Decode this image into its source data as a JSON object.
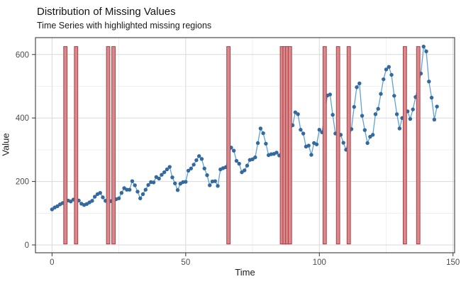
{
  "chart_data": {
    "type": "line",
    "title": "Distribution of Missing Values",
    "subtitle": "Time Series with highlighted missing regions",
    "xlabel": "Time",
    "ylabel": "Value",
    "xlim": [
      -6.2,
      150.6
    ],
    "ylim": [
      -24.6,
      653.2
    ],
    "x_major_ticks": [
      0,
      50,
      100,
      150
    ],
    "y_major_ticks": [
      0,
      200,
      400,
      600
    ],
    "x_minor_gridlines": [
      25,
      75,
      125
    ],
    "y_minor_gridlines": [
      100,
      300,
      500
    ],
    "grid": "on",
    "legend": "none",
    "colors": {
      "point": "#34699e",
      "line": "#5ea1d9",
      "missing_bar_fill": "#da888b",
      "missing_bar_stroke": "#ab3f45",
      "grid_major": "#d9d9d9",
      "grid_minor": "#ececec",
      "panel_border": "#3d3d3d",
      "tick_mark": "#333333",
      "tick_label": "#4d4d4d"
    },
    "missing_times": [
      5,
      9,
      21,
      23,
      66,
      86,
      87,
      88,
      89,
      102,
      107,
      111,
      132,
      137
    ],
    "missing_bar_value_range": [
      3,
      625
    ],
    "series": [
      {
        "name": "value",
        "x_start": 0,
        "x_step": 1,
        "values": [
          112,
          118,
          122,
          128,
          132,
          null,
          140,
          137,
          143,
          null,
          140,
          130,
          126,
          129,
          134,
          139,
          152,
          160,
          164,
          150,
          139,
          null,
          138,
          null,
          144,
          147,
          164,
          179,
          174,
          174,
          201,
          188,
          168,
          147,
          160,
          174,
          189,
          198,
          197,
          214,
          209,
          221,
          229,
          238,
          246,
          213,
          194,
          173,
          193,
          198,
          199,
          234,
          241,
          253,
          267,
          280,
          271,
          241,
          220,
          188,
          200,
          201,
          186,
          238,
          242,
          245,
          null,
          307,
          297,
          265,
          256,
          229,
          235,
          250,
          268,
          270,
          276,
          321,
          367,
          352,
          319,
          283,
          286,
          287,
          291,
          282,
          null,
          null,
          null,
          null,
          377,
          418,
          412,
          363,
          351,
          310,
          313,
          284,
          321,
          317,
          363,
          355,
          null,
          471,
          474,
          410,
          351,
          null,
          347,
          322,
          300,
          null,
          365,
          435,
          497,
          509,
          407,
          362,
          321,
          341,
          347,
          412,
          429,
          476,
          522,
          553,
          561,
          536,
          470,
          412,
          367,
          400,
          null,
          421,
          397,
          427,
          466,
          null,
          540,
          625,
          610,
          515,
          464,
          395,
          436
        ]
      }
    ]
  }
}
